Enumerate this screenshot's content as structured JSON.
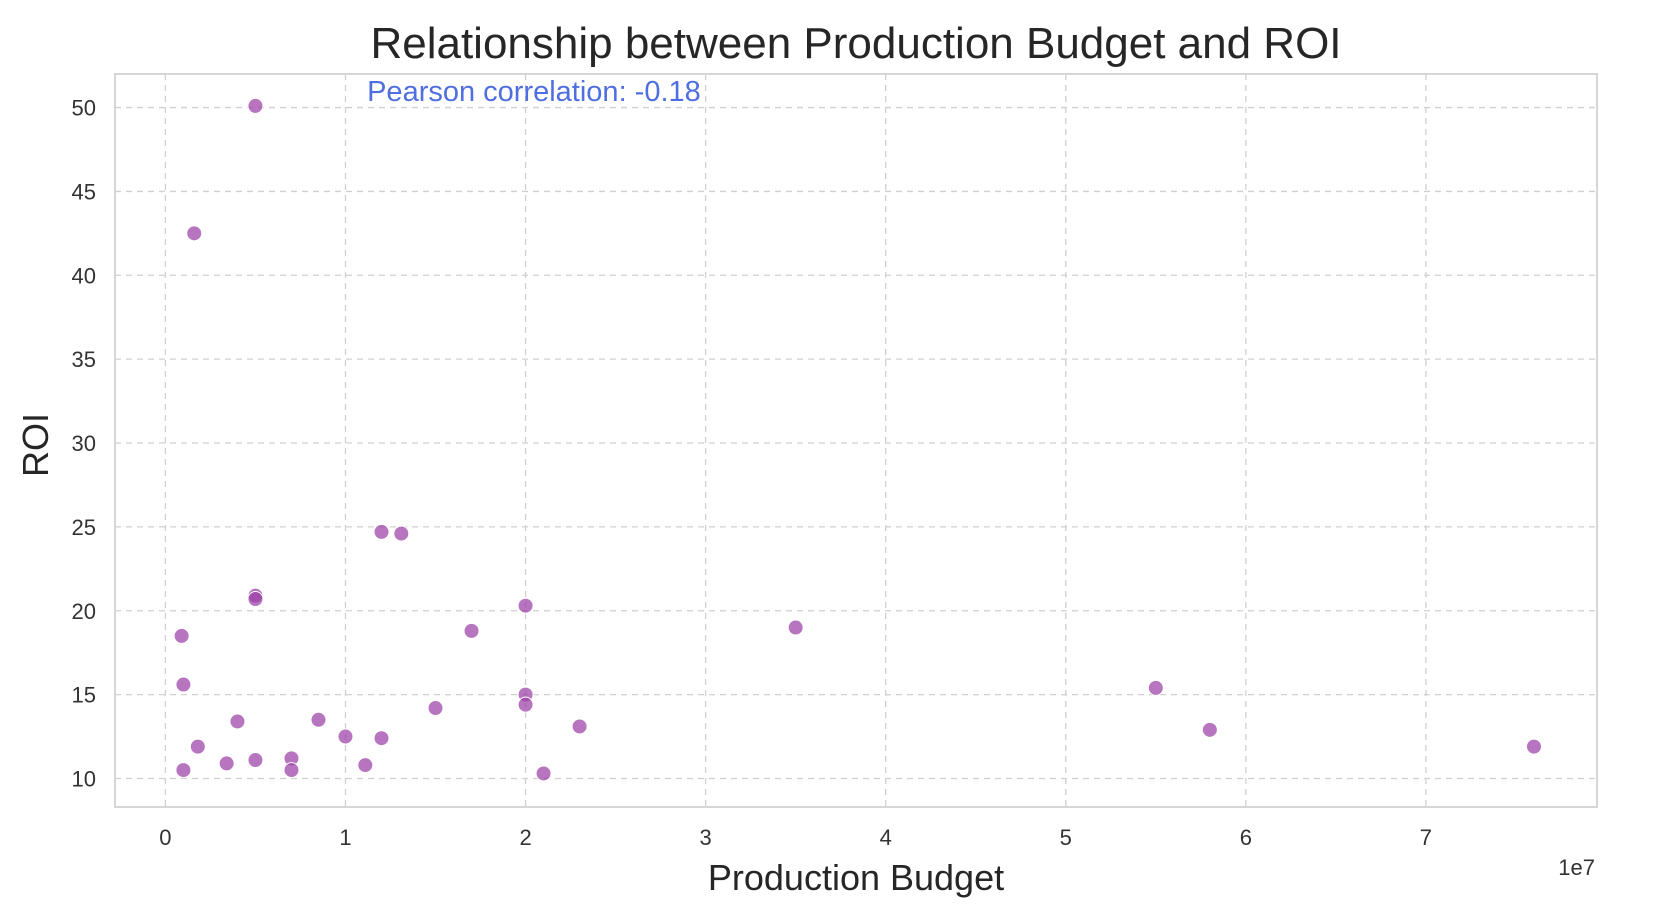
{
  "chart_data": {
    "type": "scatter",
    "title": "Relationship between Production Budget and ROI",
    "xlabel": "Production Budget",
    "ylabel": "ROI",
    "x_offset_label": "1e7",
    "xlim": [
      -0.28,
      7.95
    ],
    "ylim": [
      8.3,
      52.0
    ],
    "x_ticks": [
      0,
      1,
      2,
      3,
      4,
      5,
      6,
      7
    ],
    "y_ticks": [
      10,
      15,
      20,
      25,
      30,
      35,
      40,
      45,
      50
    ],
    "grid": true,
    "point_color": "#9b3fa6",
    "annotation": {
      "text": "Pearson correlation: -0.18",
      "color": "#4f6fe0",
      "x": 1.12,
      "y": 50.4
    },
    "points": [
      {
        "x": 0.5,
        "y": 50.1
      },
      {
        "x": 0.16,
        "y": 42.5
      },
      {
        "x": 1.2,
        "y": 24.7
      },
      {
        "x": 1.31,
        "y": 24.6
      },
      {
        "x": 0.5,
        "y": 20.9
      },
      {
        "x": 0.5,
        "y": 20.7
      },
      {
        "x": 2.0,
        "y": 20.3
      },
      {
        "x": 0.09,
        "y": 18.5
      },
      {
        "x": 3.5,
        "y": 19.0
      },
      {
        "x": 1.7,
        "y": 18.8
      },
      {
        "x": 0.1,
        "y": 15.6
      },
      {
        "x": 5.5,
        "y": 15.4
      },
      {
        "x": 2.0,
        "y": 15.0
      },
      {
        "x": 2.0,
        "y": 14.4
      },
      {
        "x": 1.5,
        "y": 14.2
      },
      {
        "x": 0.4,
        "y": 13.4
      },
      {
        "x": 0.85,
        "y": 13.5
      },
      {
        "x": 2.3,
        "y": 13.1
      },
      {
        "x": 5.8,
        "y": 12.9
      },
      {
        "x": 1.0,
        "y": 12.5
      },
      {
        "x": 1.2,
        "y": 12.4
      },
      {
        "x": 0.18,
        "y": 11.9
      },
      {
        "x": 7.6,
        "y": 11.9
      },
      {
        "x": 0.7,
        "y": 11.2
      },
      {
        "x": 0.5,
        "y": 11.1
      },
      {
        "x": 0.34,
        "y": 10.9
      },
      {
        "x": 1.11,
        "y": 10.8
      },
      {
        "x": 0.1,
        "y": 10.5
      },
      {
        "x": 0.7,
        "y": 10.5
      },
      {
        "x": 2.1,
        "y": 10.3
      }
    ]
  }
}
